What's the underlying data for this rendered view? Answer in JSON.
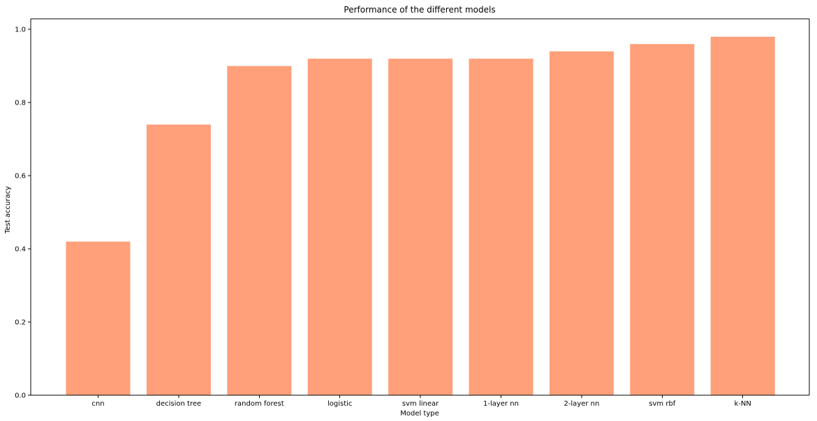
{
  "chart_data": {
    "type": "bar",
    "title": "Performance of the different models",
    "xlabel": "Model type",
    "ylabel": "Test accuracy",
    "categories": [
      "cnn",
      "decision tree",
      "random forest",
      "logistic",
      "svm linear",
      "1-layer nn",
      "2-layer nn",
      "svm rbf",
      "k-NN"
    ],
    "values": [
      0.42,
      0.74,
      0.9,
      0.92,
      0.92,
      0.92,
      0.94,
      0.96,
      0.98
    ],
    "yticks": [
      "0.0",
      "0.2",
      "0.4",
      "0.6",
      "0.8",
      "1.0"
    ],
    "ylim": [
      0,
      1.029
    ],
    "grid": false,
    "bar_color": "#ffa07a"
  }
}
